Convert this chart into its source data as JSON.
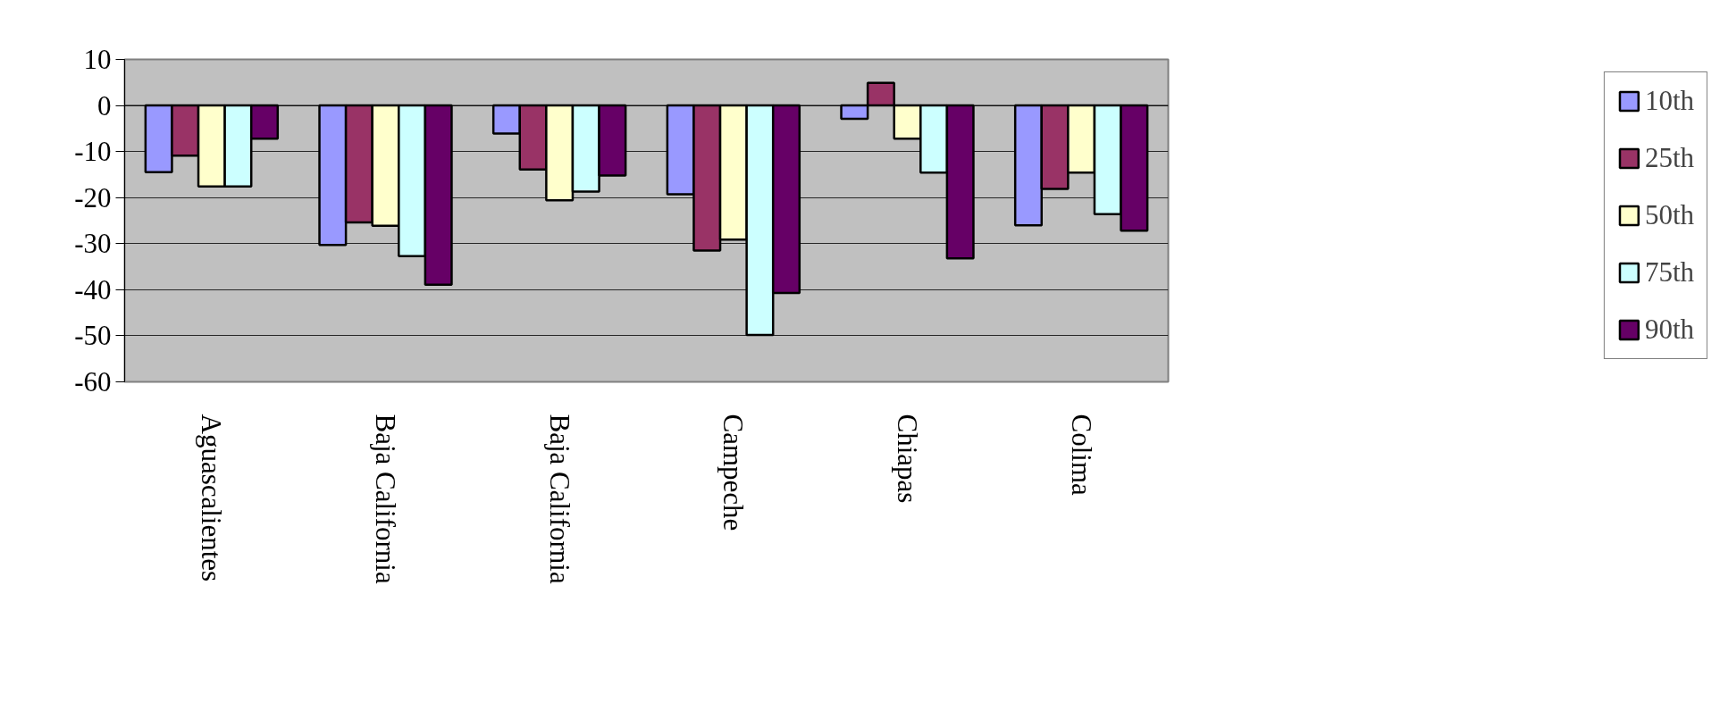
{
  "chart_data": {
    "type": "bar",
    "categories": [
      "Aguascalientes",
      "Baja California",
      "Baja California",
      "Campeche",
      "Chiapas",
      "Colima"
    ],
    "series": [
      {
        "name": "10th",
        "color": "#9999ff",
        "values": [
          -14.5,
          -30.3,
          -6.1,
          -19.3,
          -2.9,
          -26.0
        ]
      },
      {
        "name": "25th",
        "color": "#993366",
        "values": [
          -10.9,
          -25.4,
          -13.9,
          -31.5,
          4.9,
          -18.1
        ]
      },
      {
        "name": "50th",
        "color": "#ffffcc",
        "values": [
          -17.6,
          -26.1,
          -20.6,
          -29.1,
          -7.2,
          -14.6
        ]
      },
      {
        "name": "75th",
        "color": "#ccffff",
        "values": [
          -17.6,
          -32.7,
          -18.7,
          -49.8,
          -14.6,
          -23.6
        ]
      },
      {
        "name": "90th",
        "color": "#660066",
        "values": [
          -7.2,
          -38.9,
          -15.2,
          -40.7,
          -33.2,
          -27.2
        ]
      }
    ],
    "ylim": [
      -60,
      10
    ],
    "yticks": [
      -60,
      -50,
      -40,
      -30,
      -20,
      -10,
      0,
      10
    ],
    "grid": "y",
    "legend": "right"
  }
}
